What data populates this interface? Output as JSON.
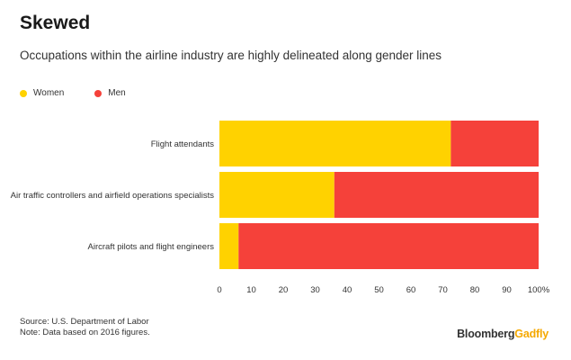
{
  "title": "Skewed",
  "subtitle": "Occupations within the airline industry are highly delineated along gender lines",
  "legend": [
    {
      "label": "Women",
      "color": "#FFD200"
    },
    {
      "label": "Men",
      "color": "#F5413A"
    }
  ],
  "chart_data": {
    "type": "bar",
    "orientation": "horizontal",
    "stacked": true,
    "categories": [
      "Flight attendants",
      "Air traffic controllers and airfield operations specialists",
      "Aircraft pilots and flight engineers"
    ],
    "series": [
      {
        "name": "Women",
        "color": "#FFD200",
        "values": [
          72.5,
          36,
          6
        ]
      },
      {
        "name": "Men",
        "color": "#F5413A",
        "values": [
          27.5,
          64,
          94
        ]
      }
    ],
    "xlim": [
      0,
      100
    ],
    "xticks": [
      "0",
      "10",
      "20",
      "30",
      "40",
      "50",
      "60",
      "70",
      "80",
      "90",
      "100%"
    ],
    "grid": false,
    "legend_position": "top-left"
  },
  "footer": {
    "source": "Source: U.S. Department of Labor",
    "note": "Note: Data based on 2016 figures."
  },
  "brand": {
    "part1": "Bloomberg",
    "part2": "Gadfly"
  }
}
